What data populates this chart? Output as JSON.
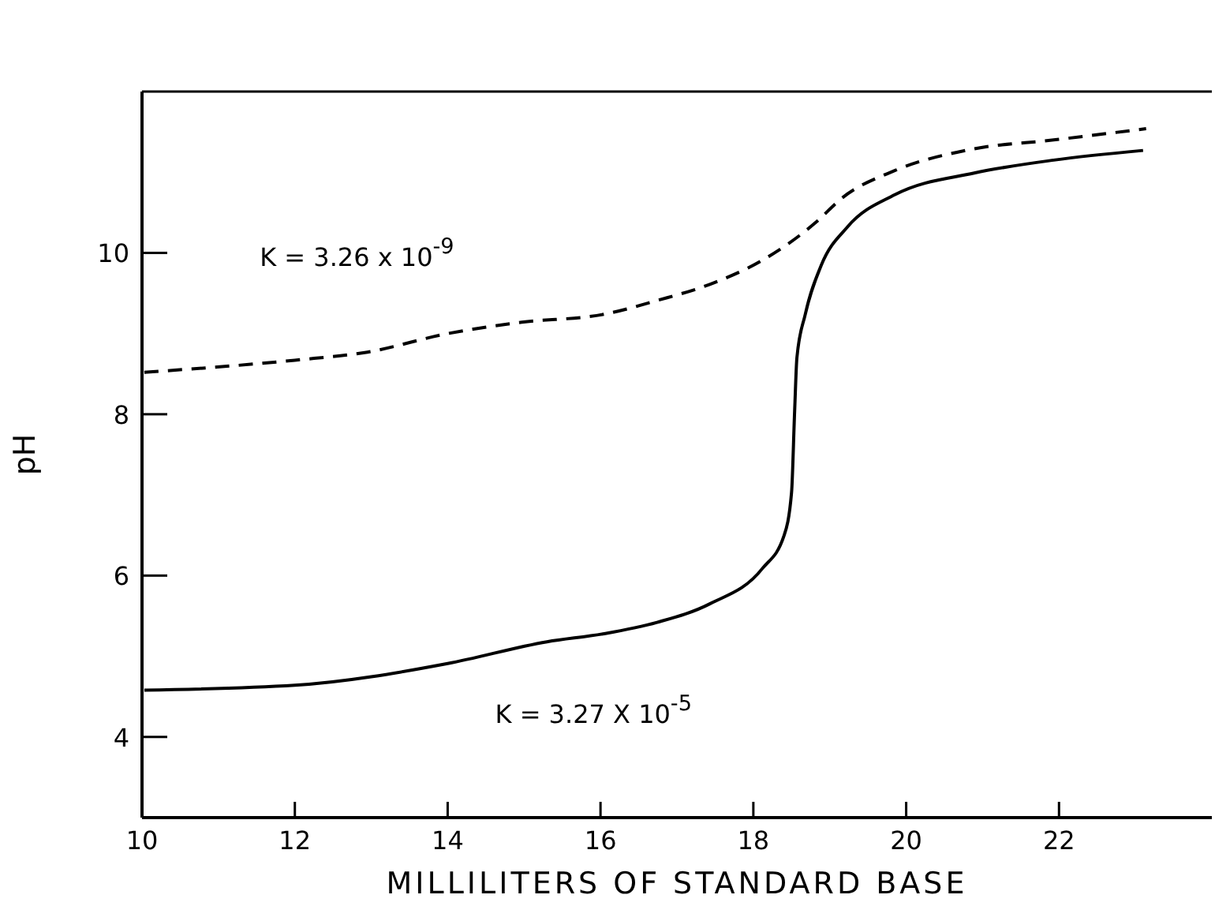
{
  "chart_data": {
    "type": "line",
    "xlabel": "MILLILITERS OF STANDARD BASE",
    "ylabel": "pH",
    "xlim": [
      10,
      24
    ],
    "ylim": [
      3,
      12
    ],
    "xticks": [
      10,
      12,
      14,
      16,
      18,
      20,
      22
    ],
    "yticks": [
      4,
      6,
      8,
      10
    ],
    "series": [
      {
        "name": "K = 3.26 x 10$^{-9}$",
        "color": "#000000",
        "line_style": "dashed",
        "x": [
          10.03,
          12,
          12.95,
          14,
          14.97,
          16.05,
          16.74,
          17.43,
          18.12,
          18.82,
          19.16,
          19.85,
          20.89,
          21.93,
          23.14
        ],
        "values": [
          8.52,
          8.67,
          8.77,
          9.0,
          9.14,
          9.24,
          9.41,
          9.61,
          9.91,
          10.38,
          10.68,
          11.02,
          11.29,
          11.4,
          11.54
        ]
      },
      {
        "name": "K = 3.27 X 10$^{-5}$",
        "color": "#000000",
        "line_style": "solid",
        "x": [
          10.03,
          12,
          14,
          15.3,
          16.05,
          16.74,
          17.43,
          18.12,
          18.4,
          18.5,
          18.54,
          18.57,
          18.68,
          18.89,
          19.23,
          19.85,
          20.89,
          21.93,
          23.1
        ],
        "values": [
          4.58,
          4.64,
          4.91,
          5.18,
          5.28,
          5.42,
          5.65,
          6.09,
          6.49,
          7.03,
          8.03,
          8.7,
          9.24,
          9.85,
          10.32,
          10.72,
          10.99,
          11.15,
          11.27
        ]
      }
    ]
  }
}
